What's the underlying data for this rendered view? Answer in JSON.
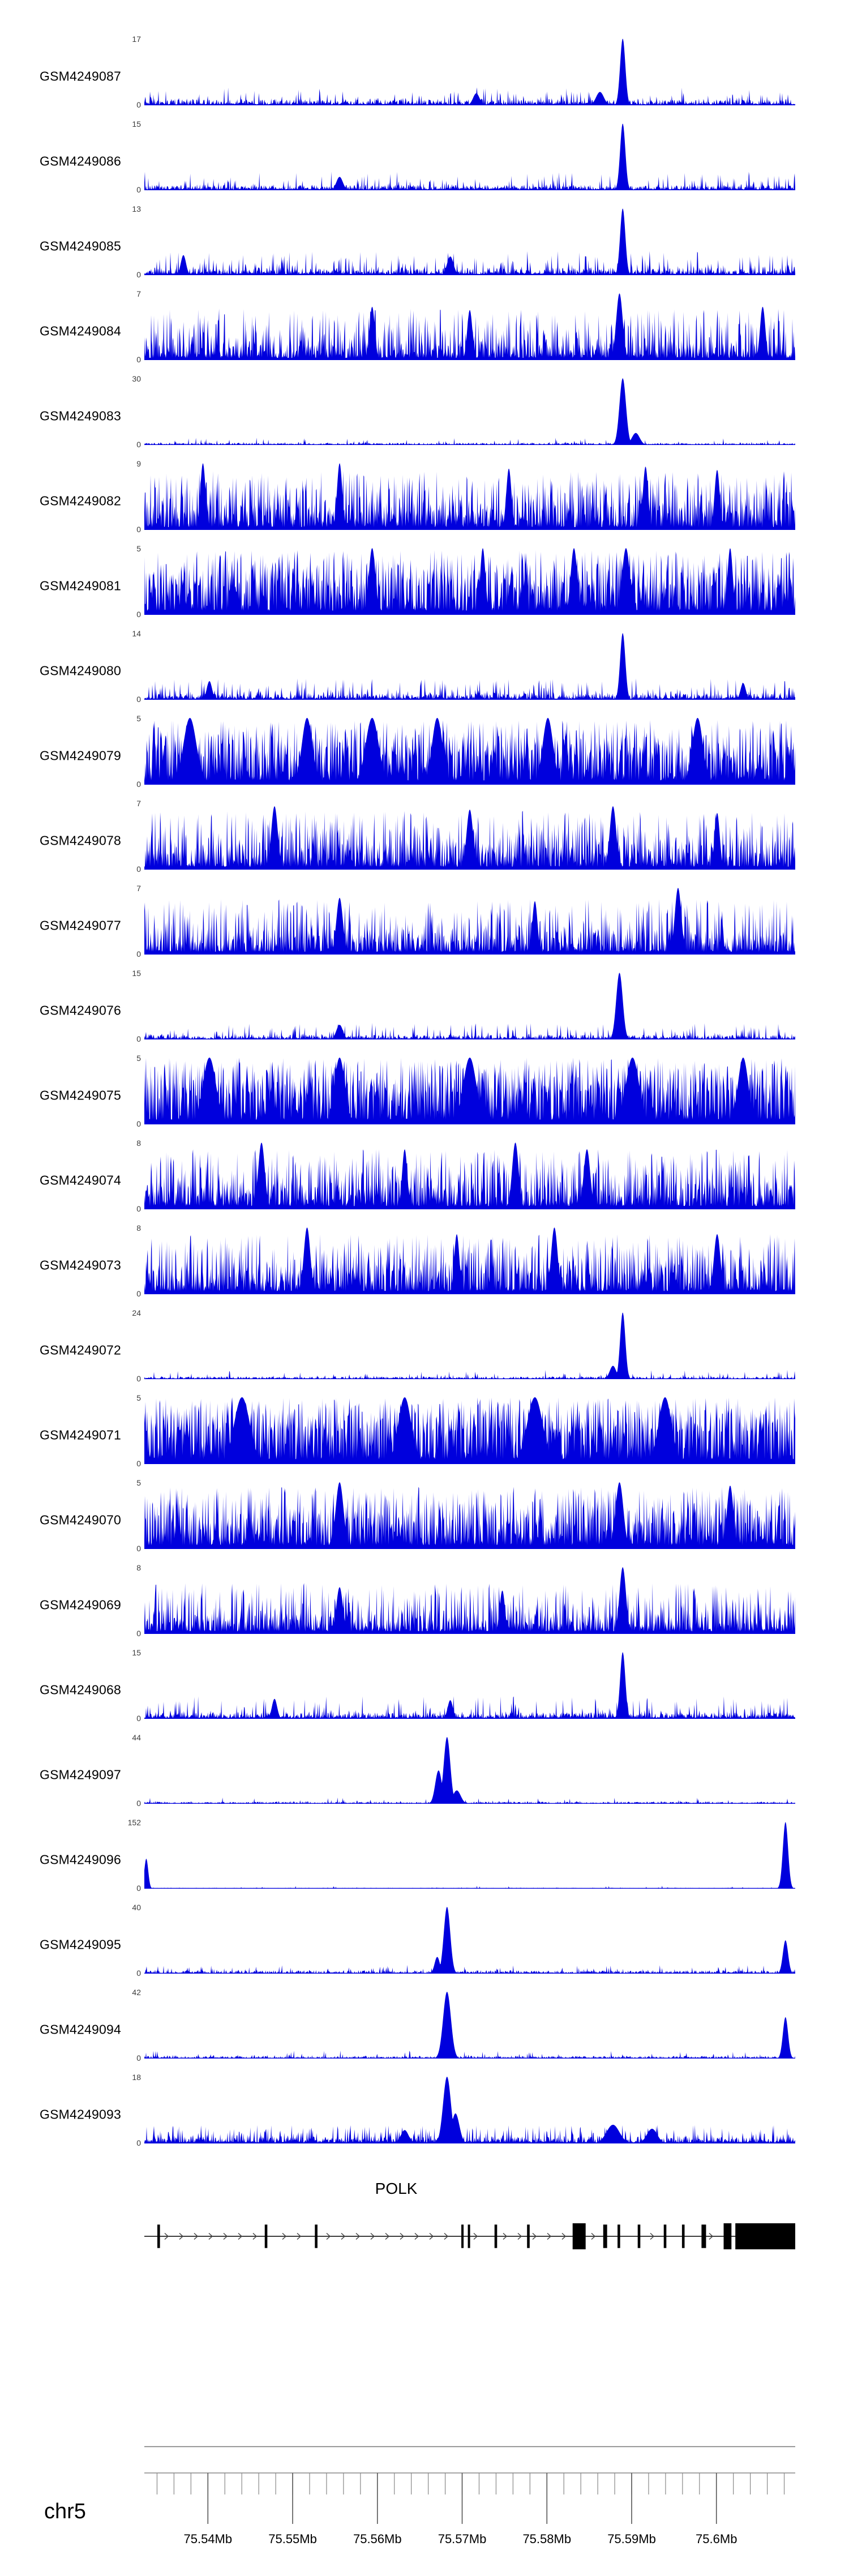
{
  "chart_data": {
    "type": "area",
    "description": "Genome browser coverage tracks over the POLK locus on chr5",
    "signal_color": "#0000dd",
    "ruler_color": "#777777",
    "x_domain_mb": [
      75.5325,
      75.6093
    ],
    "tracks": [
      {
        "label": "GSM4249087",
        "ymax": 17,
        "ymin": 0,
        "base": 0.09,
        "spike_freq": 0.12,
        "spike_amp": 0.18,
        "peaks": [
          {
            "x": 0.735,
            "h": 1,
            "w": 0.004
          },
          {
            "x": 0.7,
            "h": 0.2,
            "w": 0.006
          },
          {
            "x": 0.51,
            "h": 0.18,
            "w": 0.005
          }
        ]
      },
      {
        "label": "GSM4249086",
        "ymax": 15,
        "ymin": 0,
        "base": 0.08,
        "spike_freq": 0.12,
        "spike_amp": 0.2,
        "peaks": [
          {
            "x": 0.735,
            "h": 1,
            "w": 0.004
          },
          {
            "x": 0.3,
            "h": 0.2,
            "w": 0.005
          }
        ]
      },
      {
        "label": "GSM4249085",
        "ymax": 13,
        "ymin": 0,
        "base": 0.11,
        "spike_freq": 0.18,
        "spike_amp": 0.25,
        "peaks": [
          {
            "x": 0.735,
            "h": 1,
            "w": 0.004
          },
          {
            "x": 0.47,
            "h": 0.28,
            "w": 0.005
          },
          {
            "x": 0.06,
            "h": 0.3,
            "w": 0.004
          }
        ]
      },
      {
        "label": "GSM4249084",
        "ymax": 7,
        "ymin": 0,
        "base": 0.22,
        "spike_freq": 0.4,
        "spike_amp": 0.55,
        "peaks": [
          {
            "x": 0.73,
            "h": 1,
            "w": 0.005
          },
          {
            "x": 0.35,
            "h": 0.8,
            "w": 0.004
          },
          {
            "x": 0.5,
            "h": 0.75,
            "w": 0.004
          },
          {
            "x": 0.95,
            "h": 0.8,
            "w": 0.004
          }
        ]
      },
      {
        "label": "GSM4249083",
        "ymax": 30,
        "ymin": 0,
        "base": 0.035,
        "spike_freq": 0.06,
        "spike_amp": 0.08,
        "peaks": [
          {
            "x": 0.735,
            "h": 1,
            "w": 0.005
          },
          {
            "x": 0.755,
            "h": 0.18,
            "w": 0.006
          }
        ]
      },
      {
        "label": "GSM4249082",
        "ymax": 9,
        "ymin": 0,
        "base": 0.28,
        "spike_freq": 0.45,
        "spike_amp": 0.6,
        "peaks": [
          {
            "x": 0.09,
            "h": 1,
            "w": 0.004
          },
          {
            "x": 0.3,
            "h": 1,
            "w": 0.004
          },
          {
            "x": 0.56,
            "h": 0.92,
            "w": 0.004
          },
          {
            "x": 0.77,
            "h": 0.95,
            "w": 0.004
          },
          {
            "x": 0.88,
            "h": 0.9,
            "w": 0.004
          }
        ]
      },
      {
        "label": "GSM4249081",
        "ymax": 5,
        "ymin": 0,
        "base": 0.42,
        "spike_freq": 0.55,
        "spike_amp": 0.55,
        "peaks": [
          {
            "x": 0.35,
            "h": 1,
            "w": 0.005
          },
          {
            "x": 0.52,
            "h": 1,
            "w": 0.004
          },
          {
            "x": 0.66,
            "h": 1,
            "w": 0.005
          },
          {
            "x": 0.74,
            "h": 1,
            "w": 0.006
          },
          {
            "x": 0.9,
            "h": 1,
            "w": 0.004
          }
        ]
      },
      {
        "label": "GSM4249080",
        "ymax": 14,
        "ymin": 0,
        "base": 0.1,
        "spike_freq": 0.15,
        "spike_amp": 0.22,
        "peaks": [
          {
            "x": 0.735,
            "h": 1,
            "w": 0.004
          },
          {
            "x": 0.1,
            "h": 0.28,
            "w": 0.004
          },
          {
            "x": 0.92,
            "h": 0.25,
            "w": 0.004
          }
        ]
      },
      {
        "label": "GSM4249079",
        "ymax": 5,
        "ymin": 0,
        "base": 0.42,
        "spike_freq": 0.55,
        "spike_amp": 0.55,
        "peaks": [
          {
            "x": 0.07,
            "h": 1,
            "w": 0.01
          },
          {
            "x": 0.25,
            "h": 1,
            "w": 0.008
          },
          {
            "x": 0.35,
            "h": 1,
            "w": 0.01
          },
          {
            "x": 0.45,
            "h": 1,
            "w": 0.008
          },
          {
            "x": 0.62,
            "h": 1,
            "w": 0.008
          },
          {
            "x": 0.85,
            "h": 1,
            "w": 0.008
          }
        ]
      },
      {
        "label": "GSM4249078",
        "ymax": 7,
        "ymin": 0,
        "base": 0.3,
        "spike_freq": 0.42,
        "spike_amp": 0.58,
        "peaks": [
          {
            "x": 0.2,
            "h": 0.95,
            "w": 0.005
          },
          {
            "x": 0.5,
            "h": 0.9,
            "w": 0.005
          },
          {
            "x": 0.72,
            "h": 0.95,
            "w": 0.005
          },
          {
            "x": 0.88,
            "h": 0.85,
            "w": 0.004
          }
        ]
      },
      {
        "label": "GSM4249077",
        "ymax": 7,
        "ymin": 0,
        "base": 0.28,
        "spike_freq": 0.38,
        "spike_amp": 0.55,
        "peaks": [
          {
            "x": 0.82,
            "h": 1,
            "w": 0.005
          },
          {
            "x": 0.3,
            "h": 0.85,
            "w": 0.005
          },
          {
            "x": 0.6,
            "h": 0.8,
            "w": 0.004
          }
        ]
      },
      {
        "label": "GSM4249076",
        "ymax": 15,
        "ymin": 0,
        "base": 0.07,
        "spike_freq": 0.12,
        "spike_amp": 0.18,
        "peaks": [
          {
            "x": 0.73,
            "h": 1,
            "w": 0.005
          },
          {
            "x": 0.3,
            "h": 0.22,
            "w": 0.005
          }
        ]
      },
      {
        "label": "GSM4249075",
        "ymax": 5,
        "ymin": 0,
        "base": 0.48,
        "spike_freq": 0.58,
        "spike_amp": 0.52,
        "peaks": [
          {
            "x": 0.1,
            "h": 1,
            "w": 0.01
          },
          {
            "x": 0.3,
            "h": 1,
            "w": 0.008
          },
          {
            "x": 0.5,
            "h": 1,
            "w": 0.01
          },
          {
            "x": 0.75,
            "h": 1,
            "w": 0.01
          },
          {
            "x": 0.92,
            "h": 1,
            "w": 0.008
          }
        ]
      },
      {
        "label": "GSM4249074",
        "ymax": 8,
        "ymin": 0,
        "base": 0.32,
        "spike_freq": 0.45,
        "spike_amp": 0.58,
        "peaks": [
          {
            "x": 0.18,
            "h": 1,
            "w": 0.005
          },
          {
            "x": 0.4,
            "h": 0.9,
            "w": 0.004
          },
          {
            "x": 0.57,
            "h": 1,
            "w": 0.005
          },
          {
            "x": 0.68,
            "h": 0.9,
            "w": 0.005
          }
        ]
      },
      {
        "label": "GSM4249073",
        "ymax": 8,
        "ymin": 0,
        "base": 0.32,
        "spike_freq": 0.45,
        "spike_amp": 0.58,
        "peaks": [
          {
            "x": 0.25,
            "h": 1,
            "w": 0.005
          },
          {
            "x": 0.48,
            "h": 0.9,
            "w": 0.004
          },
          {
            "x": 0.63,
            "h": 1,
            "w": 0.005
          },
          {
            "x": 0.88,
            "h": 0.9,
            "w": 0.005
          }
        ]
      },
      {
        "label": "GSM4249072",
        "ymax": 24,
        "ymin": 0,
        "base": 0.04,
        "spike_freq": 0.07,
        "spike_amp": 0.1,
        "peaks": [
          {
            "x": 0.735,
            "h": 1,
            "w": 0.004
          },
          {
            "x": 0.72,
            "h": 0.2,
            "w": 0.005
          }
        ]
      },
      {
        "label": "GSM4249071",
        "ymax": 5,
        "ymin": 0,
        "base": 0.48,
        "spike_freq": 0.58,
        "spike_amp": 0.52,
        "peaks": [
          {
            "x": 0.15,
            "h": 1,
            "w": 0.012
          },
          {
            "x": 0.4,
            "h": 1,
            "w": 0.01
          },
          {
            "x": 0.6,
            "h": 1,
            "w": 0.012
          },
          {
            "x": 0.8,
            "h": 1,
            "w": 0.01
          }
        ]
      },
      {
        "label": "GSM4249070",
        "ymax": 5,
        "ymin": 0,
        "base": 0.38,
        "spike_freq": 0.5,
        "spike_amp": 0.55,
        "peaks": [
          {
            "x": 0.3,
            "h": 1,
            "w": 0.006
          },
          {
            "x": 0.73,
            "h": 1,
            "w": 0.006
          },
          {
            "x": 0.9,
            "h": 0.95,
            "w": 0.005
          }
        ]
      },
      {
        "label": "GSM4249069",
        "ymax": 8,
        "ymin": 0,
        "base": 0.26,
        "spike_freq": 0.35,
        "spike_amp": 0.5,
        "peaks": [
          {
            "x": 0.735,
            "h": 1,
            "w": 0.005
          },
          {
            "x": 0.3,
            "h": 0.7,
            "w": 0.005
          },
          {
            "x": 0.55,
            "h": 0.65,
            "w": 0.004
          }
        ]
      },
      {
        "label": "GSM4249068",
        "ymax": 15,
        "ymin": 0,
        "base": 0.1,
        "spike_freq": 0.16,
        "spike_amp": 0.24,
        "peaks": [
          {
            "x": 0.735,
            "h": 1,
            "w": 0.004
          },
          {
            "x": 0.2,
            "h": 0.3,
            "w": 0.004
          },
          {
            "x": 0.47,
            "h": 0.28,
            "w": 0.004
          }
        ]
      },
      {
        "label": "GSM4249097",
        "ymax": 44,
        "ymin": 0,
        "base": 0.035,
        "spike_freq": 0.05,
        "spike_amp": 0.06,
        "peaks": [
          {
            "x": 0.465,
            "h": 1,
            "w": 0.005
          },
          {
            "x": 0.452,
            "h": 0.5,
            "w": 0.005
          },
          {
            "x": 0.48,
            "h": 0.2,
            "w": 0.006
          }
        ]
      },
      {
        "label": "GSM4249096",
        "ymax": 152,
        "ymin": 0,
        "base": 0.015,
        "spike_freq": 0.03,
        "spike_amp": 0.03,
        "peaks": [
          {
            "x": 0.003,
            "h": 0.45,
            "w": 0.003
          },
          {
            "x": 0.985,
            "h": 1,
            "w": 0.004
          }
        ]
      },
      {
        "label": "GSM4249095",
        "ymax": 40,
        "ymin": 0,
        "base": 0.05,
        "spike_freq": 0.08,
        "spike_amp": 0.08,
        "peaks": [
          {
            "x": 0.465,
            "h": 1,
            "w": 0.005
          },
          {
            "x": 0.985,
            "h": 0.5,
            "w": 0.004
          },
          {
            "x": 0.45,
            "h": 0.25,
            "w": 0.004
          }
        ]
      },
      {
        "label": "GSM4249094",
        "ymax": 42,
        "ymin": 0,
        "base": 0.04,
        "spike_freq": 0.07,
        "spike_amp": 0.08,
        "peaks": [
          {
            "x": 0.465,
            "h": 1,
            "w": 0.006
          },
          {
            "x": 0.985,
            "h": 0.62,
            "w": 0.004
          }
        ]
      },
      {
        "label": "GSM4249093",
        "ymax": 18,
        "ymin": 0,
        "base": 0.1,
        "spike_freq": 0.22,
        "spike_amp": 0.18,
        "peaks": [
          {
            "x": 0.465,
            "h": 1,
            "w": 0.006
          },
          {
            "x": 0.478,
            "h": 0.45,
            "w": 0.006
          },
          {
            "x": 0.72,
            "h": 0.28,
            "w": 0.01
          },
          {
            "x": 0.78,
            "h": 0.22,
            "w": 0.008
          },
          {
            "x": 0.4,
            "h": 0.2,
            "w": 0.006
          }
        ]
      }
    ],
    "gene_model": {
      "label": "POLK",
      "strand": "right",
      "exons": [
        {
          "x": 0.02,
          "w": 0.004,
          "h": 0.9
        },
        {
          "x": 0.185,
          "w": 0.004,
          "h": 0.9
        },
        {
          "x": 0.262,
          "w": 0.004,
          "h": 0.9
        },
        {
          "x": 0.487,
          "w": 0.0035,
          "h": 0.9
        },
        {
          "x": 0.497,
          "w": 0.0035,
          "h": 0.9
        },
        {
          "x": 0.538,
          "w": 0.004,
          "h": 0.9
        },
        {
          "x": 0.588,
          "w": 0.004,
          "h": 0.9
        },
        {
          "x": 0.658,
          "w": 0.02,
          "h": 1
        },
        {
          "x": 0.705,
          "w": 0.006,
          "h": 0.9
        },
        {
          "x": 0.727,
          "w": 0.004,
          "h": 0.9
        },
        {
          "x": 0.758,
          "w": 0.004,
          "h": 0.9
        },
        {
          "x": 0.798,
          "w": 0.004,
          "h": 0.9
        },
        {
          "x": 0.826,
          "w": 0.004,
          "h": 0.9
        },
        {
          "x": 0.856,
          "w": 0.007,
          "h": 0.9
        },
        {
          "x": 0.89,
          "w": 0.012,
          "h": 1
        },
        {
          "x": 0.908,
          "w": 0.092,
          "h": 1
        }
      ]
    },
    "axis": {
      "chrom": "chr5",
      "start_mb": 75.5325,
      "end_mb": 75.6093,
      "minor_tick_mb": 0.002,
      "major_ticks": [
        {
          "mb": 75.54,
          "label": "75.54Mb"
        },
        {
          "mb": 75.55,
          "label": "75.55Mb"
        },
        {
          "mb": 75.56,
          "label": "75.56Mb"
        },
        {
          "mb": 75.57,
          "label": "75.57Mb"
        },
        {
          "mb": 75.58,
          "label": "75.58Mb"
        },
        {
          "mb": 75.59,
          "label": "75.59Mb"
        },
        {
          "mb": 75.6,
          "label": "75.6Mb"
        }
      ]
    }
  }
}
